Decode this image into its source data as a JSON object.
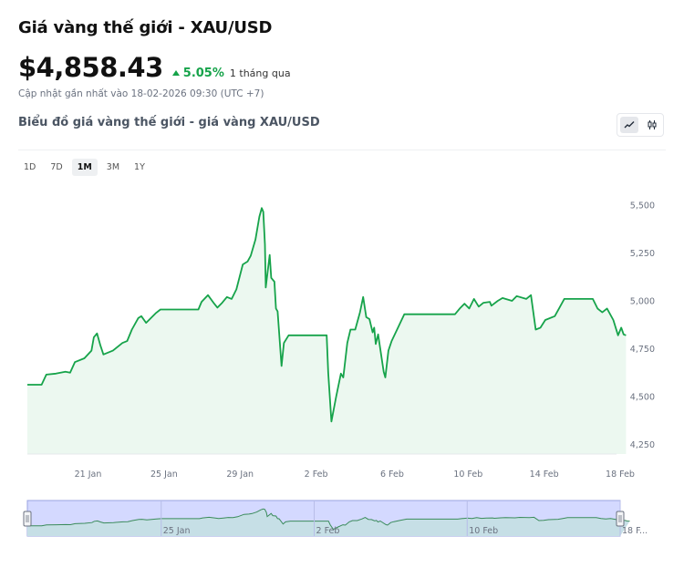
{
  "header": {
    "title": "Giá vàng thế giới - XAU/USD",
    "price": "$4,858.43",
    "change": "5.05%",
    "period": "1 tháng qua",
    "updated": "Cập nhật gần nhất vào 18-02-2026 09:30 (UTC +7)",
    "subtitle": "Biểu đồ giá vàng thế giới - giá vàng XAU/USD"
  },
  "controls": {
    "ranges": [
      "1D",
      "7D",
      "1M",
      "3M",
      "1Y"
    ],
    "active_range": "1M",
    "modes": [
      "line-chart-icon",
      "candlestick-icon"
    ],
    "active_mode": "line-chart-icon"
  },
  "colors": {
    "line": "#16a34a",
    "area": "#ecf8f0",
    "navigator_fill": "#d4d9ff",
    "navigator_border": "#9aa3e0",
    "up": "#16a34a"
  },
  "chart_data": {
    "type": "area",
    "title": "",
    "xlabel": "",
    "ylabel": "",
    "ylim": [
      4200,
      5600
    ],
    "yticks": [
      4250,
      4500,
      4750,
      5000,
      5250,
      5500
    ],
    "ytick_labels": [
      "4,250",
      "4,500",
      "4,750",
      "5,000",
      "5,250",
      "5,500"
    ],
    "xticks": [
      "21 Jan",
      "25 Jan",
      "29 Jan",
      "2 Feb",
      "6 Feb",
      "10 Feb",
      "14 Feb",
      "18 Feb"
    ],
    "xlim": [
      "2026-01-18",
      "2026-02-18"
    ],
    "grid": false,
    "series": [
      {
        "points": [
          [
            "2026-01-18",
            4562
          ],
          [
            "2026-01-18 18:00",
            4562
          ],
          [
            "2026-01-19",
            4615
          ],
          [
            "2026-01-19 12:00",
            4620
          ],
          [
            "2026-01-20",
            4630
          ],
          [
            "2026-01-20 06:00",
            4625
          ],
          [
            "2026-01-20 12:00",
            4680
          ],
          [
            "2026-01-21",
            4700
          ],
          [
            "2026-01-21 09:00",
            4740
          ],
          [
            "2026-01-21 12:00",
            4810
          ],
          [
            "2026-01-21 16:00",
            4830
          ],
          [
            "2026-01-21 20:00",
            4770
          ],
          [
            "2026-01-22",
            4720
          ],
          [
            "2026-01-22 12:00",
            4740
          ],
          [
            "2026-01-23",
            4780
          ],
          [
            "2026-01-23 06:00",
            4790
          ],
          [
            "2026-01-23 12:00",
            4850
          ],
          [
            "2026-01-23 20:00",
            4910
          ],
          [
            "2026-01-24",
            4920
          ],
          [
            "2026-01-24 06:00",
            4885
          ],
          [
            "2026-01-24 18:00",
            4935
          ],
          [
            "2026-01-25",
            4955
          ],
          [
            "2026-01-27",
            4955
          ],
          [
            "2026-01-27 04:00",
            4995
          ],
          [
            "2026-01-27 12:00",
            5030
          ],
          [
            "2026-01-27 20:00",
            4985
          ],
          [
            "2026-01-28",
            4965
          ],
          [
            "2026-01-28 06:00",
            4990
          ],
          [
            "2026-01-28 12:00",
            5020
          ],
          [
            "2026-01-28 18:00",
            5010
          ],
          [
            "2026-01-29",
            5060
          ],
          [
            "2026-01-29 08:00",
            5190
          ],
          [
            "2026-01-29 14:00",
            5205
          ],
          [
            "2026-01-29 18:00",
            5235
          ],
          [
            "2026-01-30",
            5320
          ],
          [
            "2026-01-30 05:00",
            5440
          ],
          [
            "2026-01-30 08:00",
            5485
          ],
          [
            "2026-01-30 10:00",
            5465
          ],
          [
            "2026-01-30 12:00",
            5295
          ],
          [
            "2026-01-30 13:00",
            5070
          ],
          [
            "2026-01-30 18:00",
            5240
          ],
          [
            "2026-01-30 20:00",
            5120
          ],
          [
            "2026-01-31",
            5100
          ],
          [
            "2026-01-31 02:00",
            4960
          ],
          [
            "2026-01-31 04:00",
            4945
          ],
          [
            "2026-01-31 09:00",
            4660
          ],
          [
            "2026-01-31 12:00",
            4780
          ],
          [
            "2026-01-31 18:00",
            4820
          ],
          [
            "2026-02-02 18:00",
            4820
          ],
          [
            "2026-02-02 20:00",
            4625
          ],
          [
            "2026-02-03",
            4370
          ],
          [
            "2026-02-03 06:00",
            4500
          ],
          [
            "2026-02-03 12:00",
            4620
          ],
          [
            "2026-02-03 15:00",
            4600
          ],
          [
            "2026-02-03 20:00",
            4780
          ],
          [
            "2026-02-04",
            4850
          ],
          [
            "2026-02-04 06:00",
            4850
          ],
          [
            "2026-02-04 12:00",
            4940
          ],
          [
            "2026-02-04 16:00",
            5020
          ],
          [
            "2026-02-04 20:00",
            4915
          ],
          [
            "2026-02-05",
            4905
          ],
          [
            "2026-02-05 04:00",
            4835
          ],
          [
            "2026-02-05 06:00",
            4860
          ],
          [
            "2026-02-05 08:00",
            4775
          ],
          [
            "2026-02-05 11:00",
            4825
          ],
          [
            "2026-02-05 18:00",
            4630
          ],
          [
            "2026-02-05 20:00",
            4600
          ],
          [
            "2026-02-06",
            4740
          ],
          [
            "2026-02-06 04:00",
            4790
          ],
          [
            "2026-02-06 12:00",
            4860
          ],
          [
            "2026-02-06 20:00",
            4930
          ],
          [
            "2026-02-09 12:00",
            4930
          ],
          [
            "2026-02-09 18:00",
            4960
          ],
          [
            "2026-02-10",
            4985
          ],
          [
            "2026-02-10 06:00",
            4960
          ],
          [
            "2026-02-10 12:00",
            5010
          ],
          [
            "2026-02-10 18:00",
            4970
          ],
          [
            "2026-02-11",
            4990
          ],
          [
            "2026-02-11 08:00",
            4995
          ],
          [
            "2026-02-11 10:00",
            4975
          ],
          [
            "2026-02-11 18:00",
            5000
          ],
          [
            "2026-02-12",
            5015
          ],
          [
            "2026-02-12 12:00",
            5000
          ],
          [
            "2026-02-12 18:00",
            5025
          ],
          [
            "2026-02-13 06:00",
            5010
          ],
          [
            "2026-02-13 12:00",
            5030
          ],
          [
            "2026-02-13 18:00",
            4850
          ],
          [
            "2026-02-14",
            4860
          ],
          [
            "2026-02-14 06:00",
            4900
          ],
          [
            "2026-02-14 18:00",
            4920
          ],
          [
            "2026-02-15",
            4965
          ],
          [
            "2026-02-15 06:00",
            5010
          ],
          [
            "2026-02-16 18:00",
            5010
          ],
          [
            "2026-02-17",
            4960
          ],
          [
            "2026-02-17 06:00",
            4940
          ],
          [
            "2026-02-17 12:00",
            4960
          ],
          [
            "2026-02-17 20:00",
            4900
          ],
          [
            "2026-02-18 02:00",
            4820
          ],
          [
            "2026-02-18 06:00",
            4860
          ],
          [
            "2026-02-18 09:00",
            4825
          ],
          [
            "2026-02-18 12:00",
            4820
          ]
        ]
      }
    ],
    "navigator": {
      "tick_labels": [
        "25 Jan",
        "2 Feb",
        "10 Feb",
        "18 F..."
      ]
    }
  }
}
